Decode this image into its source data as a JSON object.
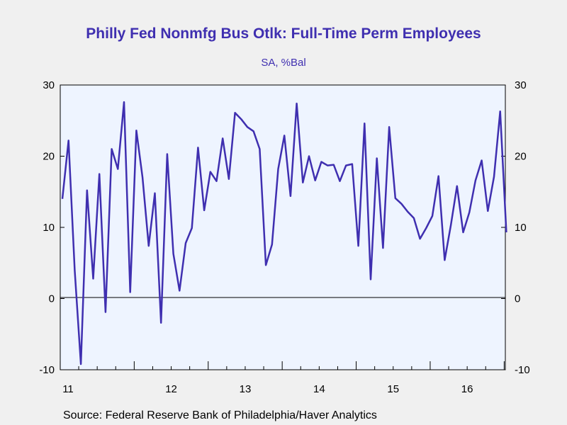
{
  "header": {
    "title": "Philly Fed Nonmfg Bus Otlk: Full-Time Perm Employees",
    "subtitle": "SA, %Bal"
  },
  "footer": {
    "source": "Source:  Federal Reserve Bank of Philadelphia/Haver Analytics"
  },
  "colors": {
    "series": "#3f2fb0",
    "plot_background": "#eef4ff",
    "page_background": "#f0f0f0",
    "axis": "#000000"
  },
  "chart_data": {
    "type": "line",
    "title": "Philly Fed Nonmfg Bus Otlk: Full-Time Perm Employees",
    "subtitle": "SA, %Bal",
    "xlabel": "",
    "ylabel": "",
    "ylim": [
      -10,
      30
    ],
    "yticks": [
      -10,
      0,
      10,
      20,
      30
    ],
    "year_labels": [
      "11",
      "12",
      "13",
      "14",
      "15",
      "16"
    ],
    "grid": false,
    "zero_line": true,
    "right_axis": true,
    "series": [
      {
        "name": "",
        "frequency": "monthly",
        "start": "2011-01",
        "values": [
          14.0,
          22.2,
          4.0,
          -9.2,
          15.2,
          2.8,
          17.5,
          -1.9,
          21.0,
          18.2,
          27.6,
          0.9,
          23.6,
          17.0,
          7.4,
          14.8,
          -3.4,
          20.3,
          6.3,
          1.1,
          7.8,
          9.9,
          21.2,
          12.4,
          17.8,
          16.5,
          22.5,
          16.8,
          26.1,
          25.2,
          24.1,
          23.5,
          21.0,
          4.7,
          7.6,
          18.2,
          22.9,
          14.4,
          27.4,
          16.3,
          20.0,
          16.6,
          19.2,
          18.7,
          18.8,
          16.5,
          18.7,
          18.9,
          7.4,
          24.6,
          2.7,
          19.7,
          7.1,
          24.1,
          14.1,
          13.3,
          12.2,
          11.3,
          8.4,
          9.9,
          11.6,
          17.2,
          5.4,
          10.3,
          15.8,
          9.3,
          12.1,
          16.6,
          19.4,
          12.3,
          17.1,
          26.3,
          9.3
        ]
      }
    ]
  }
}
